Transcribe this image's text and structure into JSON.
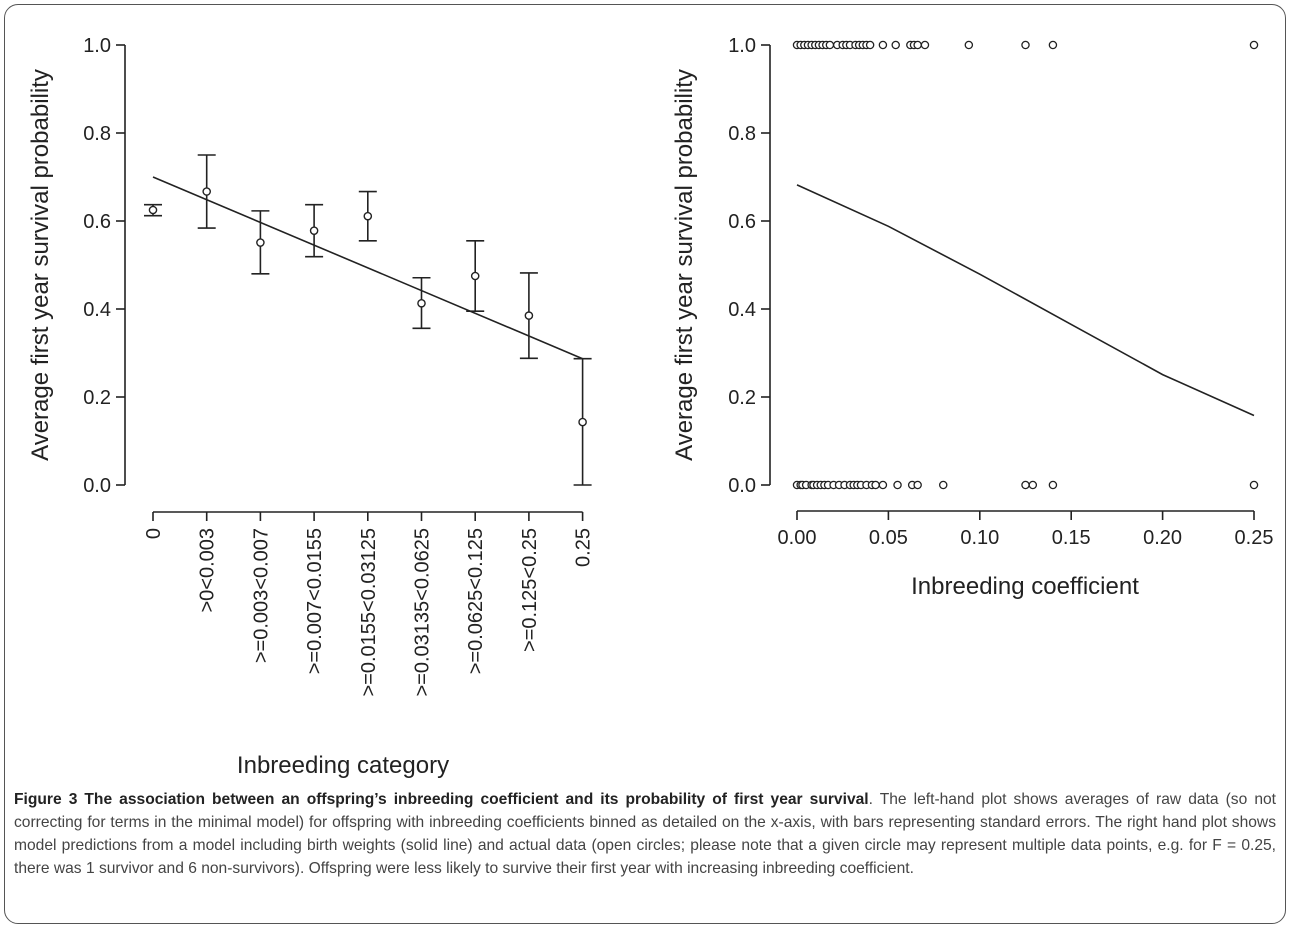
{
  "chart_data": [
    {
      "type": "scatter",
      "panel": "left",
      "xlabel": "Inbreeding category",
      "ylabel": "Average first year survival probability",
      "ylim": [
        0,
        1
      ],
      "yticks": [
        "0.0",
        "0.2",
        "0.4",
        "0.6",
        "0.8",
        "1.0"
      ],
      "categories": [
        "0",
        ">0<0.003",
        ">=0.003<0.007",
        ">=0.007<0.0155",
        ">=0.0155<0.03125",
        ">=0.03135<0.0625",
        ">=0.0625<0.125",
        ">=0.125<0.25",
        "0.25"
      ],
      "series": [
        {
          "values": [
            0.625,
            0.667,
            0.551,
            0.578,
            0.611,
            0.413,
            0.475,
            0.385,
            0.143
          ],
          "err_lower": [
            0.612,
            0.584,
            0.48,
            0.519,
            0.555,
            0.356,
            0.395,
            0.288,
            0.0
          ],
          "err_upper": [
            0.637,
            0.75,
            0.623,
            0.637,
            0.667,
            0.471,
            0.555,
            0.482,
            0.287
          ]
        }
      ],
      "fit_line": {
        "start": 0.7,
        "end": 0.287
      }
    },
    {
      "type": "scatter",
      "panel": "right",
      "xlabel": "Inbreeding coefficient",
      "ylabel": "Average first year survival probability",
      "xlim": [
        0,
        0.25
      ],
      "ylim": [
        0,
        1
      ],
      "xticks": [
        "0.00",
        "0.05",
        "0.10",
        "0.15",
        "0.20",
        "0.25"
      ],
      "yticks": [
        "0.0",
        "0.2",
        "0.4",
        "0.6",
        "0.8",
        "1.0"
      ],
      "points_survived": [
        0.0,
        0.002,
        0.004,
        0.006,
        0.008,
        0.01,
        0.012,
        0.014,
        0.016,
        0.018,
        0.022,
        0.025,
        0.027,
        0.029,
        0.032,
        0.034,
        0.036,
        0.038,
        0.04,
        0.047,
        0.054,
        0.062,
        0.064,
        0.066,
        0.07,
        0.094,
        0.125,
        0.14,
        0.25
      ],
      "points_died": [
        0.0,
        0.002,
        0.003,
        0.005,
        0.008,
        0.009,
        0.011,
        0.013,
        0.015,
        0.017,
        0.02,
        0.023,
        0.026,
        0.029,
        0.031,
        0.033,
        0.035,
        0.038,
        0.041,
        0.043,
        0.047,
        0.055,
        0.063,
        0.066,
        0.08,
        0.125,
        0.129,
        0.14,
        0.25
      ],
      "model_curve": {
        "x": [
          0.0,
          0.05,
          0.1,
          0.15,
          0.2,
          0.25
        ],
        "y": [
          0.682,
          0.588,
          0.479,
          0.365,
          0.251,
          0.158
        ]
      }
    }
  ],
  "caption": {
    "title": "Figure 3 The association between an offspring’s inbreeding coefficient and its probability of first year survival",
    "body": ". The left-hand plot shows averages of raw data (so not correcting for terms in the minimal model) for offspring with inbreeding coefficients binned as detailed on the x-axis, with bars representing standard errors. The right hand plot shows model predictions from a model including birth weights (solid line) and actual data (open circles; please note that a given circle may represent multiple data points, e.g. for F = 0.25, there was 1 survivor and 6 non-survivors). Offspring were less likely to survive their first year with increasing inbreeding coefficient."
  }
}
